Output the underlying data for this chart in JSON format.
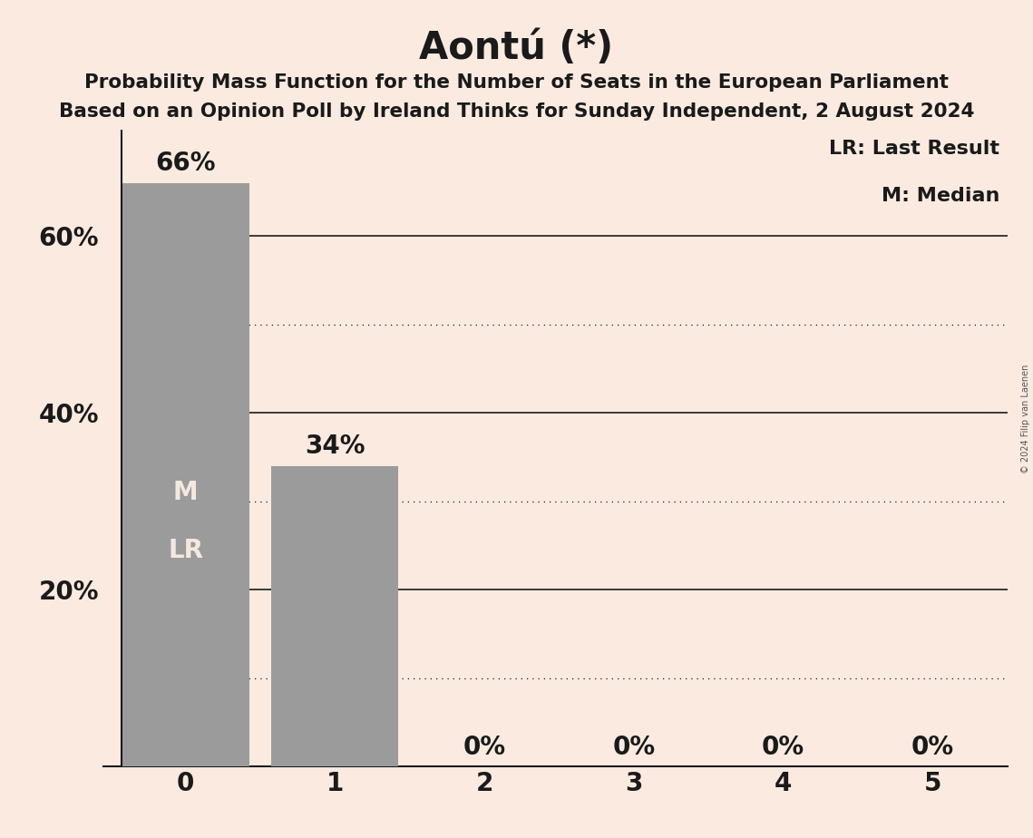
{
  "title": "Aontú (*)",
  "subtitle_line1": "Probability Mass Function for the Number of Seats in the European Parliament",
  "subtitle_line2": "Based on an Opinion Poll by Ireland Thinks for Sunday Independent, 2 August 2024",
  "categories": [
    0,
    1,
    2,
    3,
    4,
    5
  ],
  "values": [
    0.66,
    0.34,
    0.0,
    0.0,
    0.0,
    0.0
  ],
  "bar_color": "#9b9b9b",
  "background_color": "#faeae0",
  "title_fontsize": 30,
  "subtitle_fontsize": 15.5,
  "bar_label_fontsize": 20,
  "axis_tick_fontsize": 20,
  "legend_fontsize": 16,
  "inner_label_fontsize": 20,
  "solid_gridlines": [
    0.2,
    0.4,
    0.6
  ],
  "dotted_gridlines": [
    0.1,
    0.3,
    0.5
  ],
  "legend_text1": "LR: Last Result",
  "legend_text2": "M: Median",
  "median_label": "M",
  "lr_label": "LR",
  "copyright_text": "© 2024 Filip van Laenen",
  "ylim": [
    0,
    0.72
  ],
  "bar_width": 0.85
}
